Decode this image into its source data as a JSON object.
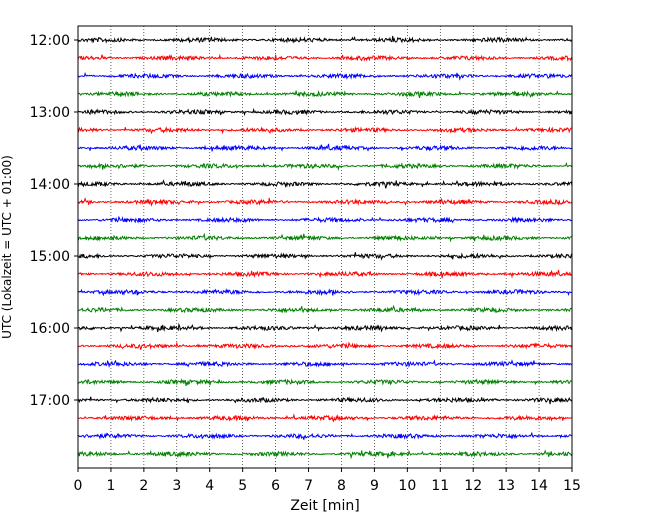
{
  "chart_data": {
    "type": "line",
    "title": "",
    "xlabel": "Zeit  [min]",
    "ylabel": "UTC (Lokalzeit = UTC + 01:00)",
    "xlim": [
      0,
      15
    ],
    "xticks": [
      0,
      1,
      2,
      3,
      4,
      5,
      6,
      7,
      8,
      9,
      10,
      11,
      12,
      13,
      14,
      15
    ],
    "xtick_labels": [
      "0",
      "1",
      "2",
      "3",
      "4",
      "5",
      "6",
      "7",
      "8",
      "9",
      "10",
      "11",
      "12",
      "13",
      "14",
      "15"
    ],
    "yticks": [
      "12:00",
      "13:00",
      "14:00",
      "15:00",
      "16:00",
      "17:00"
    ],
    "grid": "vertical dotted at each minute",
    "trace_interval_min": 15,
    "trace_colors": [
      "#000000",
      "#ff0000",
      "#0000ff",
      "#008000"
    ],
    "traces": [
      {
        "start": "12:00",
        "color": "#000000"
      },
      {
        "start": "12:15",
        "color": "#ff0000"
      },
      {
        "start": "12:30",
        "color": "#0000ff"
      },
      {
        "start": "12:45",
        "color": "#008000"
      },
      {
        "start": "13:00",
        "color": "#000000"
      },
      {
        "start": "13:15",
        "color": "#ff0000"
      },
      {
        "start": "13:30",
        "color": "#0000ff"
      },
      {
        "start": "13:45",
        "color": "#008000"
      },
      {
        "start": "14:00",
        "color": "#000000"
      },
      {
        "start": "14:15",
        "color": "#ff0000"
      },
      {
        "start": "14:30",
        "color": "#0000ff"
      },
      {
        "start": "14:45",
        "color": "#008000"
      },
      {
        "start": "15:00",
        "color": "#000000"
      },
      {
        "start": "15:15",
        "color": "#ff0000"
      },
      {
        "start": "15:30",
        "color": "#0000ff"
      },
      {
        "start": "15:45",
        "color": "#008000"
      },
      {
        "start": "16:00",
        "color": "#000000"
      },
      {
        "start": "16:15",
        "color": "#ff0000"
      },
      {
        "start": "16:30",
        "color": "#0000ff"
      },
      {
        "start": "16:45",
        "color": "#008000"
      },
      {
        "start": "17:00",
        "color": "#000000"
      },
      {
        "start": "17:15",
        "color": "#ff0000"
      },
      {
        "start": "17:30",
        "color": "#0000ff"
      },
      {
        "start": "17:45",
        "color": "#008000"
      }
    ]
  }
}
